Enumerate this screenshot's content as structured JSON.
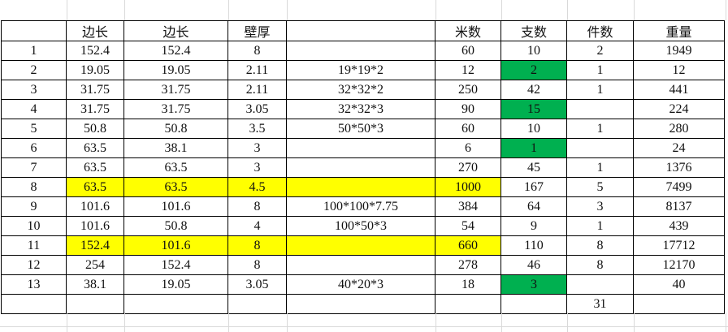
{
  "sheet": {
    "title": "pipe-weight-table",
    "columns": [
      {
        "key": "num",
        "label": ""
      },
      {
        "key": "side1",
        "label": "边长"
      },
      {
        "key": "side2",
        "label": "边长"
      },
      {
        "key": "thickness",
        "label": "壁厚"
      },
      {
        "key": "spec",
        "label": ""
      },
      {
        "key": "meters",
        "label": "米数"
      },
      {
        "key": "pieces",
        "label": "支数"
      },
      {
        "key": "bundles",
        "label": "件数"
      },
      {
        "key": "weight",
        "label": "重量"
      }
    ],
    "rows": [
      {
        "num": "1",
        "side1": "152.4",
        "side2": "152.4",
        "thickness": "8",
        "spec": "",
        "meters": "60",
        "pieces": "10",
        "bundles": "2",
        "weight": "1949",
        "hl": {}
      },
      {
        "num": "2",
        "side1": "19.05",
        "side2": "19.05",
        "thickness": "2.11",
        "spec": "19*19*2",
        "meters": "12",
        "pieces": "2",
        "bundles": "1",
        "weight": "12",
        "hl": {
          "pieces": "green"
        }
      },
      {
        "num": "3",
        "side1": "31.75",
        "side2": "31.75",
        "thickness": "2.11",
        "spec": "32*32*2",
        "meters": "250",
        "pieces": "42",
        "bundles": "1",
        "weight": "441",
        "hl": {}
      },
      {
        "num": "4",
        "side1": "31.75",
        "side2": "31.75",
        "thickness": "3.05",
        "spec": "32*32*3",
        "meters": "90",
        "pieces": "15",
        "bundles": "",
        "weight": "224",
        "hl": {
          "pieces": "green"
        }
      },
      {
        "num": "5",
        "side1": "50.8",
        "side2": "50.8",
        "thickness": "3.5",
        "spec": "50*50*3",
        "meters": "60",
        "pieces": "10",
        "bundles": "1",
        "weight": "280",
        "hl": {}
      },
      {
        "num": "6",
        "side1": "63.5",
        "side2": "38.1",
        "thickness": "3",
        "spec": "",
        "meters": "6",
        "pieces": "1",
        "bundles": "",
        "weight": "24",
        "hl": {
          "pieces": "green"
        }
      },
      {
        "num": "7",
        "side1": "63.5",
        "side2": "63.5",
        "thickness": "3",
        "spec": "",
        "meters": "270",
        "pieces": "45",
        "bundles": "1",
        "weight": "1376",
        "hl": {}
      },
      {
        "num": "8",
        "side1": "63.5",
        "side2": "63.5",
        "thickness": "4.5",
        "spec": "",
        "meters": "1000",
        "pieces": "167",
        "bundles": "5",
        "weight": "7499",
        "hl": {
          "side1": "yellow",
          "side2": "yellow",
          "thickness": "yellow",
          "spec": "yellow",
          "meters": "yellow"
        }
      },
      {
        "num": "9",
        "side1": "101.6",
        "side2": "101.6",
        "thickness": "8",
        "spec": "100*100*7.75",
        "meters": "384",
        "pieces": "64",
        "bundles": "3",
        "weight": "8137",
        "hl": {}
      },
      {
        "num": "10",
        "side1": "101.6",
        "side2": "50.8",
        "thickness": "4",
        "spec": "100*50*3",
        "meters": "54",
        "pieces": "9",
        "bundles": "1",
        "weight": "439",
        "hl": {}
      },
      {
        "num": "11",
        "side1": "152.4",
        "side2": "101.6",
        "thickness": "8",
        "spec": "",
        "meters": "660",
        "pieces": "110",
        "bundles": "8",
        "weight": "17712",
        "hl": {
          "side1": "yellow",
          "side2": "yellow",
          "thickness": "yellow",
          "spec": "yellow",
          "meters": "yellow"
        }
      },
      {
        "num": "12",
        "side1": "254",
        "side2": "152.4",
        "thickness": "8",
        "spec": "",
        "meters": "278",
        "pieces": "46",
        "bundles": "8",
        "weight": "12170",
        "hl": {}
      },
      {
        "num": "13",
        "side1": "38.1",
        "side2": "19.05",
        "thickness": "3.05",
        "spec": "40*20*3",
        "meters": "18",
        "pieces": "3",
        "bundles": "",
        "weight": "40",
        "hl": {
          "pieces": "green"
        }
      },
      {
        "num": "",
        "side1": "",
        "side2": "",
        "thickness": "",
        "spec": "",
        "meters": "",
        "pieces": "",
        "bundles": "31",
        "weight": "",
        "hl": {}
      }
    ],
    "colors": {
      "highlight_yellow": "#FFFF00",
      "highlight_green": "#00B050",
      "table_border": "#000000",
      "gridline": "#d9d9d9"
    }
  }
}
